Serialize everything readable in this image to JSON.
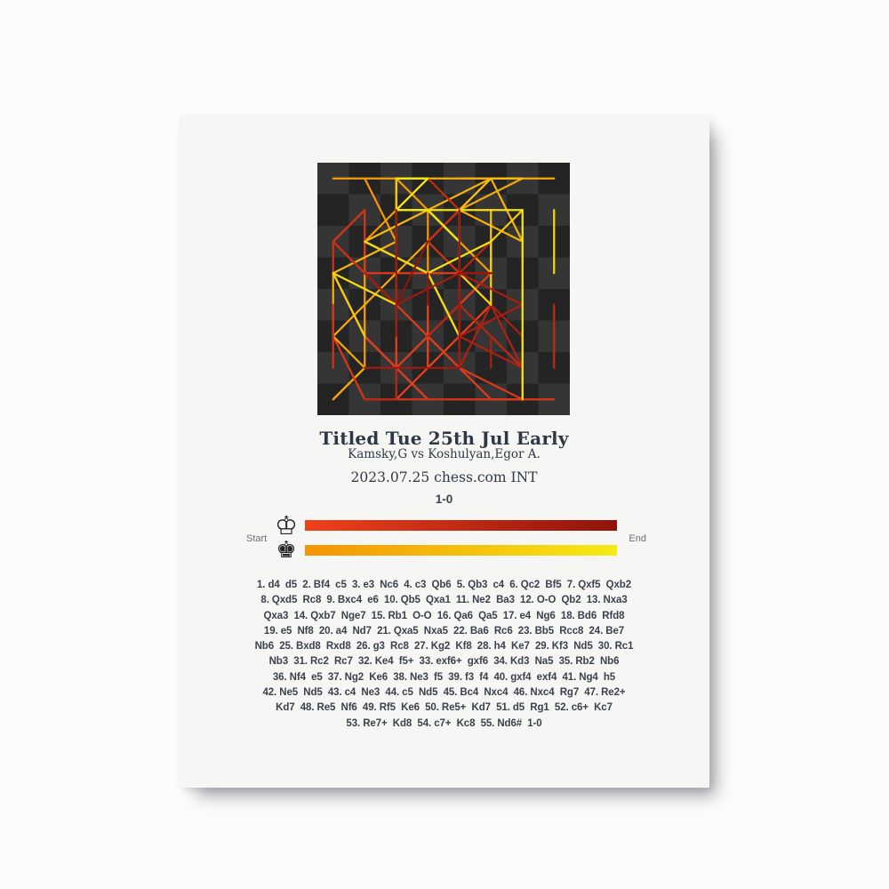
{
  "poster": {
    "title": "Titled Tue 25th Jul Early",
    "players": "Kamsky,G vs Koshulyan,Egor A.",
    "event": "2023.07.25 chess.com INT",
    "result": "1-0"
  },
  "legend": {
    "start_label": "Start",
    "end_label": "End",
    "white_king_icon": "♔",
    "black_king_icon": "♚",
    "white_gradient": [
      "#EF411B",
      "#8F130C"
    ],
    "black_gradient": [
      "#F49306",
      "#F5EB14"
    ]
  },
  "board": {
    "light_square": "#353535",
    "dark_square": "#242424",
    "orientation": "white-bottom"
  },
  "moves_lines": [
    "1. d4  d5  2. Bf4  c5  3. e3  Nc6  4. c3  Qb6  5. Qb3  c4  6. Qc2  Bf5  7. Qxf5  Qxb2",
    "8. Qxd5  Rc8  9. Bxc4  e6  10. Qb5  Qxa1  11. Ne2  Ba3  12. O-O  Qb2  13. Nxa3",
    "Qxa3  14. Qxb7  Nge7  15. Rb1  O-O  16. Qa6  Qa5  17. e4  Ng6  18. Bd6  Rfd8",
    "19. e5  Nf8  20. a4  Nd7  21. Qxa5  Nxa5  22. Ba6  Rc6  23. Bb5  Rcc8  24. Be7",
    "Nb6  25. Bxd8  Rxd8  26. g3  Rc8  27. Kg2  Kf8  28. h4  Ke7  29. Kf3  Nd5  30. Rc1",
    "Nb3  31. Rc2  Rc7  32. Ke4  f5+  33. exf6+  gxf6  34. Kd3  Na5  35. Rb2  Nb6",
    "36. Nf4  e5  37. Ng2  Ke6  38. Ne3  f5  39. f3  f4  40. gxf4  exf4  41. Ng4  h5",
    "42. Ne5  Nd5  43. c4  Ne3  44. c5  Nd5  45. Bc4  Nxc4  46. Nxc4  Rg7  47. Re2+",
    "Kd7  48. Re5  Nf6  49. Rf5  Ke6  50. Re5+  Kd7  51. d5  Rg1  52. c6+  Kc7",
    "53. Re7+  Kd8  54. c7+  Kc8  55. Nd6#  1-0"
  ],
  "chart_data": {
    "type": "chess-move-trajectories",
    "description": "Each move of the game drawn as a straight line between square centers; white moves fade orange-red to dark red over the game, black moves fade orange to yellow",
    "white_move_count": 55,
    "black_move_count": 54,
    "segments": [
      [
        "w",
        1,
        "d2",
        "d4"
      ],
      [
        "b",
        1,
        "d7",
        "d5"
      ],
      [
        "w",
        2,
        "c1",
        "f4"
      ],
      [
        "b",
        2,
        "c7",
        "c5"
      ],
      [
        "w",
        3,
        "e2",
        "e3"
      ],
      [
        "b",
        3,
        "b8",
        "c6"
      ],
      [
        "w",
        4,
        "c2",
        "c3"
      ],
      [
        "b",
        4,
        "d8",
        "b6"
      ],
      [
        "w",
        5,
        "d1",
        "b3"
      ],
      [
        "b",
        5,
        "c5",
        "c4"
      ],
      [
        "w",
        6,
        "b3",
        "c2"
      ],
      [
        "b",
        6,
        "c8",
        "f5"
      ],
      [
        "w",
        7,
        "c2",
        "f5"
      ],
      [
        "b",
        7,
        "b6",
        "b2"
      ],
      [
        "w",
        8,
        "f5",
        "d5"
      ],
      [
        "b",
        8,
        "a8",
        "c8"
      ],
      [
        "w",
        9,
        "f1",
        "c4"
      ],
      [
        "b",
        9,
        "e7",
        "e6"
      ],
      [
        "w",
        10,
        "d5",
        "b5"
      ],
      [
        "b",
        10,
        "b2",
        "a1"
      ],
      [
        "w",
        11,
        "g1",
        "e2"
      ],
      [
        "b",
        11,
        "f8",
        "a3"
      ],
      [
        "w",
        12,
        "e1",
        "g1"
      ],
      [
        "w",
        12,
        "h1",
        "f1"
      ],
      [
        "b",
        12,
        "a1",
        "b2"
      ],
      [
        "w",
        13,
        "b1",
        "a3"
      ],
      [
        "b",
        13,
        "b2",
        "a3"
      ],
      [
        "w",
        14,
        "b5",
        "b7"
      ],
      [
        "b",
        14,
        "g8",
        "e7"
      ],
      [
        "w",
        15,
        "f1",
        "b1"
      ],
      [
        "b",
        15,
        "e8",
        "g8"
      ],
      [
        "b",
        15,
        "h8",
        "f8"
      ],
      [
        "w",
        16,
        "b7",
        "a6"
      ],
      [
        "b",
        16,
        "a3",
        "a5"
      ],
      [
        "w",
        17,
        "e3",
        "e4"
      ],
      [
        "b",
        17,
        "e7",
        "g6"
      ],
      [
        "w",
        18,
        "f4",
        "d6"
      ],
      [
        "b",
        18,
        "f8",
        "d8"
      ],
      [
        "w",
        19,
        "e4",
        "e5"
      ],
      [
        "b",
        19,
        "g6",
        "f8"
      ],
      [
        "w",
        20,
        "a2",
        "a4"
      ],
      [
        "b",
        20,
        "f8",
        "d7"
      ],
      [
        "w",
        21,
        "a6",
        "a5"
      ],
      [
        "b",
        21,
        "c6",
        "a5"
      ],
      [
        "w",
        22,
        "c4",
        "a6"
      ],
      [
        "b",
        22,
        "c8",
        "c6"
      ],
      [
        "w",
        23,
        "a6",
        "b5"
      ],
      [
        "b",
        23,
        "c6",
        "c8"
      ],
      [
        "w",
        24,
        "d6",
        "e7"
      ],
      [
        "b",
        24,
        "d7",
        "b6"
      ],
      [
        "w",
        25,
        "e7",
        "d8"
      ],
      [
        "b",
        25,
        "c8",
        "d8"
      ],
      [
        "w",
        26,
        "g2",
        "g3"
      ],
      [
        "b",
        26,
        "d8",
        "c8"
      ],
      [
        "w",
        27,
        "g1",
        "g2"
      ],
      [
        "b",
        27,
        "g8",
        "f8"
      ],
      [
        "w",
        28,
        "h2",
        "h4"
      ],
      [
        "b",
        28,
        "f8",
        "e7"
      ],
      [
        "w",
        29,
        "g2",
        "f3"
      ],
      [
        "b",
        29,
        "b6",
        "d5"
      ],
      [
        "w",
        30,
        "b1",
        "c1"
      ],
      [
        "b",
        30,
        "a5",
        "b3"
      ],
      [
        "w",
        31,
        "c1",
        "c2"
      ],
      [
        "b",
        31,
        "c8",
        "c7"
      ],
      [
        "w",
        32,
        "f3",
        "e4"
      ],
      [
        "b",
        32,
        "f7",
        "f5"
      ],
      [
        "w",
        33,
        "e5",
        "f6"
      ],
      [
        "b",
        33,
        "g7",
        "f6"
      ],
      [
        "w",
        34,
        "e4",
        "d3"
      ],
      [
        "b",
        34,
        "b3",
        "a5"
      ],
      [
        "w",
        35,
        "c2",
        "b2"
      ],
      [
        "b",
        35,
        "d5",
        "b6"
      ],
      [
        "w",
        36,
        "e2",
        "f4"
      ],
      [
        "b",
        36,
        "e6",
        "e5"
      ],
      [
        "w",
        37,
        "f4",
        "g2"
      ],
      [
        "b",
        37,
        "e7",
        "e6"
      ],
      [
        "w",
        38,
        "g2",
        "e3"
      ],
      [
        "b",
        38,
        "f6",
        "f5"
      ],
      [
        "w",
        39,
        "f2",
        "f3"
      ],
      [
        "b",
        39,
        "f5",
        "f4"
      ],
      [
        "w",
        40,
        "g3",
        "f4"
      ],
      [
        "b",
        40,
        "e5",
        "f4"
      ],
      [
        "w",
        41,
        "e3",
        "g4"
      ],
      [
        "b",
        41,
        "h7",
        "h5"
      ],
      [
        "w",
        42,
        "g4",
        "e5"
      ],
      [
        "b",
        42,
        "b6",
        "d5"
      ],
      [
        "w",
        43,
        "c3",
        "c4"
      ],
      [
        "b",
        43,
        "d5",
        "e3"
      ],
      [
        "w",
        44,
        "c4",
        "c5"
      ],
      [
        "b",
        44,
        "e3",
        "d5"
      ],
      [
        "w",
        45,
        "b5",
        "c4"
      ],
      [
        "b",
        45,
        "a5",
        "c4"
      ],
      [
        "w",
        46,
        "e5",
        "c4"
      ],
      [
        "b",
        46,
        "c7",
        "g7"
      ],
      [
        "w",
        47,
        "b2",
        "e2"
      ],
      [
        "b",
        47,
        "e6",
        "d7"
      ],
      [
        "w",
        48,
        "e2",
        "e5"
      ],
      [
        "b",
        48,
        "d5",
        "f6"
      ],
      [
        "w",
        49,
        "e5",
        "f5"
      ],
      [
        "b",
        49,
        "d7",
        "e6"
      ],
      [
        "w",
        50,
        "f5",
        "e5"
      ],
      [
        "b",
        50,
        "e6",
        "d7"
      ],
      [
        "w",
        51,
        "d4",
        "d5"
      ],
      [
        "b",
        51,
        "g7",
        "g1"
      ],
      [
        "w",
        52,
        "c5",
        "c6"
      ],
      [
        "b",
        52,
        "d7",
        "c7"
      ],
      [
        "w",
        53,
        "e5",
        "e7"
      ],
      [
        "b",
        53,
        "c7",
        "d8"
      ],
      [
        "w",
        54,
        "c6",
        "c7"
      ],
      [
        "b",
        54,
        "d8",
        "c8"
      ],
      [
        "w",
        55,
        "c4",
        "d6"
      ]
    ]
  }
}
